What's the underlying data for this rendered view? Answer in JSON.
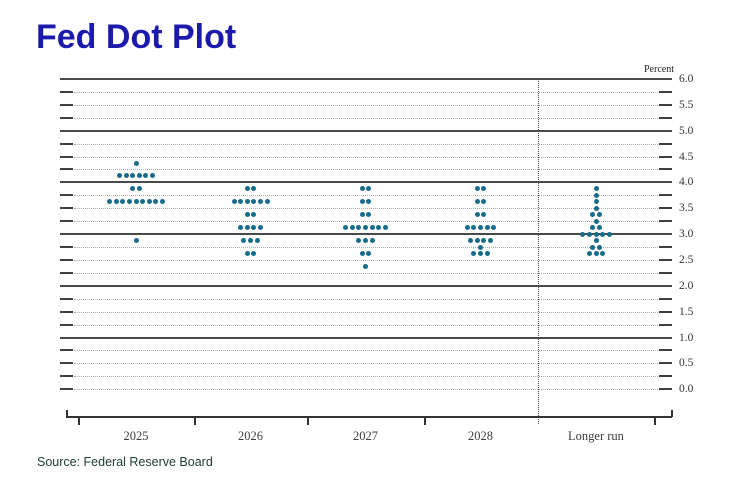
{
  "title": "Fed Dot Plot",
  "source_note": "Source: Federal Reserve Board",
  "colors": {
    "title": "#1c1aad",
    "dot": "#166c8a",
    "source": "#223d36"
  },
  "chart_data": {
    "type": "scatter",
    "subtype": "fomc-dot-plot",
    "title": "Fed Dot Plot",
    "unit_label": "Percent",
    "xlabel": "",
    "ylabel": "Percent",
    "categories": [
      "2025",
      "2026",
      "2027",
      "2028",
      "Longer run"
    ],
    "y_axis": {
      "min": 0.0,
      "max": 6.0,
      "label_step": 0.5,
      "grid_step": 0.25,
      "solid_gridlines": [
        6,
        5,
        4,
        3,
        2,
        1
      ],
      "tick_labels": [
        "6.0",
        "5.5",
        "5.0",
        "4.5",
        "4.0",
        "3.5",
        "3.0",
        "2.5",
        "2.0",
        "1.5",
        "1.0",
        "0.5",
        "0.0"
      ]
    },
    "legend": "none",
    "grid": "on",
    "series": [
      {
        "category": "2025",
        "dots": [
          {
            "rate": 4.375,
            "count": 1
          },
          {
            "rate": 4.125,
            "count": 6
          },
          {
            "rate": 3.875,
            "count": 2
          },
          {
            "rate": 3.625,
            "count": 9
          },
          {
            "rate": 2.875,
            "count": 1
          }
        ]
      },
      {
        "category": "2026",
        "dots": [
          {
            "rate": 3.875,
            "count": 2
          },
          {
            "rate": 3.625,
            "count": 6
          },
          {
            "rate": 3.375,
            "count": 2
          },
          {
            "rate": 3.125,
            "count": 4
          },
          {
            "rate": 2.875,
            "count": 3
          },
          {
            "rate": 2.625,
            "count": 2
          }
        ]
      },
      {
        "category": "2027",
        "dots": [
          {
            "rate": 3.875,
            "count": 2
          },
          {
            "rate": 3.625,
            "count": 2
          },
          {
            "rate": 3.375,
            "count": 2
          },
          {
            "rate": 3.125,
            "count": 7
          },
          {
            "rate": 2.875,
            "count": 3
          },
          {
            "rate": 2.625,
            "count": 2
          },
          {
            "rate": 2.375,
            "count": 1
          }
        ]
      },
      {
        "category": "2028",
        "dots": [
          {
            "rate": 3.875,
            "count": 2
          },
          {
            "rate": 3.625,
            "count": 2
          },
          {
            "rate": 3.375,
            "count": 2
          },
          {
            "rate": 3.125,
            "count": 5
          },
          {
            "rate": 2.875,
            "count": 4
          },
          {
            "rate": 2.75,
            "count": 1
          },
          {
            "rate": 2.625,
            "count": 3
          }
        ]
      },
      {
        "category": "Longer run",
        "dots": [
          {
            "rate": 3.875,
            "count": 1
          },
          {
            "rate": 3.75,
            "count": 1
          },
          {
            "rate": 3.625,
            "count": 1
          },
          {
            "rate": 3.5,
            "count": 1
          },
          {
            "rate": 3.375,
            "count": 2
          },
          {
            "rate": 3.25,
            "count": 1
          },
          {
            "rate": 3.125,
            "count": 2
          },
          {
            "rate": 3.0,
            "count": 5
          },
          {
            "rate": 2.875,
            "count": 1
          },
          {
            "rate": 2.75,
            "count": 2
          },
          {
            "rate": 2.625,
            "count": 3
          }
        ]
      }
    ]
  }
}
